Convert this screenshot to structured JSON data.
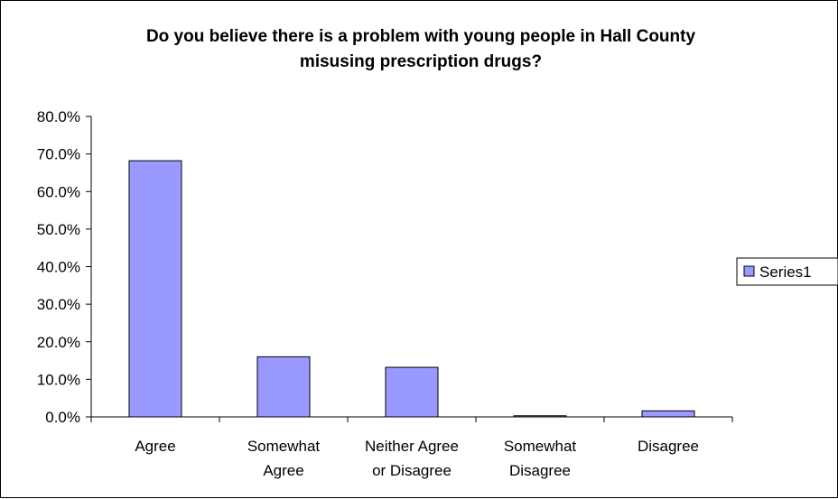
{
  "chart_data": {
    "type": "bar",
    "title_lines": [
      "Do you believe there is a problem with young people in Hall County",
      "misusing prescription drugs?"
    ],
    "categories": [
      [
        "Agree"
      ],
      [
        "Somewhat",
        "Agree"
      ],
      [
        "Neither Agree",
        "or Disagree"
      ],
      [
        "Somewhat",
        "Disagree"
      ],
      [
        "Disagree"
      ]
    ],
    "series": [
      {
        "name": "Series1",
        "values": [
          68.2,
          16.0,
          13.2,
          0.3,
          1.6
        ]
      }
    ],
    "ylim": [
      0,
      80
    ],
    "yticks": [
      "0.0%",
      "10.0%",
      "20.0%",
      "30.0%",
      "40.0%",
      "50.0%",
      "60.0%",
      "70.0%",
      "80.0%"
    ],
    "grid": false,
    "legend_position": "right",
    "colors": {
      "bar_fill": "#9999ff",
      "bar_stroke": "#000000"
    }
  }
}
